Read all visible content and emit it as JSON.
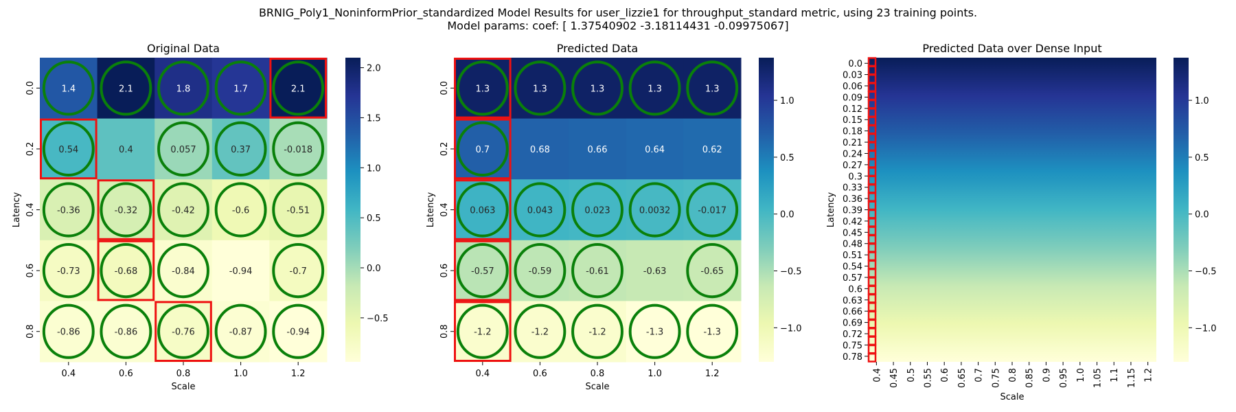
{
  "chart_data": {
    "title_line1": "BRNIG_Poly1_NoninformPrior_standardized Model Results for user_lizzie1 for throughput_standard metric, using 23 training points.",
    "title_line2": "Model params: coef: [ 1.37540902 -3.18114431 -0.09975067]",
    "type": "heatmap",
    "colormap": "YlGnBu",
    "panels": [
      {
        "title": "Original Data",
        "type": "heatmap",
        "xlabel": "Scale",
        "ylabel": "Latency",
        "x": [
          "0.4",
          "0.6",
          "0.8",
          "1.0",
          "1.2"
        ],
        "y": [
          "0.0",
          "0.2",
          "0.4",
          "0.6",
          "0.8"
        ],
        "values": [
          [
            1.4,
            2.1,
            1.8,
            1.7,
            2.1
          ],
          [
            0.54,
            0.4,
            0.057,
            0.37,
            -0.018
          ],
          [
            -0.36,
            -0.32,
            -0.42,
            -0.6,
            -0.51
          ],
          [
            -0.73,
            -0.68,
            -0.84,
            -0.94,
            -0.7
          ],
          [
            -0.86,
            -0.86,
            -0.76,
            -0.87,
            -0.94
          ]
        ],
        "labels": [
          [
            "1.4",
            "2.1",
            "1.8",
            "1.7",
            "2.1"
          ],
          [
            "0.54",
            "0.4",
            "0.057",
            "0.37",
            "-0.018"
          ],
          [
            "-0.36",
            "-0.32",
            "-0.42",
            "-0.6",
            "-0.51"
          ],
          [
            "-0.73",
            "-0.68",
            "-0.84",
            "-0.94",
            "-0.7"
          ],
          [
            "-0.86",
            "-0.86",
            "-0.76",
            "-0.87",
            "-0.94"
          ]
        ],
        "vmin": -0.94,
        "vmax": 2.1,
        "colorbar_ticks": [
          -0.5,
          0.0,
          0.5,
          1.0,
          1.5,
          2.0
        ],
        "colorbar_labels": [
          "−0.5",
          "0.0",
          "0.5",
          "1.0",
          "1.5",
          "2.0"
        ],
        "circles": [
          [
            1,
            1,
            1,
            1,
            1
          ],
          [
            1,
            0,
            1,
            1,
            1
          ],
          [
            1,
            1,
            1,
            1,
            1
          ],
          [
            1,
            1,
            1,
            0,
            1
          ],
          [
            1,
            1,
            1,
            1,
            1
          ]
        ],
        "red_boxes": [
          [
            0,
            4
          ],
          [
            1,
            0
          ],
          [
            2,
            1
          ],
          [
            3,
            1
          ],
          [
            4,
            2
          ]
        ]
      },
      {
        "title": "Predicted Data",
        "type": "heatmap",
        "xlabel": "Scale",
        "ylabel": "Latency",
        "x": [
          "0.4",
          "0.6",
          "0.8",
          "1.0",
          "1.2"
        ],
        "y": [
          "0.0",
          "0.2",
          "0.4",
          "0.6",
          "0.8"
        ],
        "values": [
          [
            1.3,
            1.3,
            1.3,
            1.3,
            1.3
          ],
          [
            0.7,
            0.68,
            0.66,
            0.64,
            0.62
          ],
          [
            0.063,
            0.043,
            0.023,
            0.0032,
            -0.017
          ],
          [
            -0.57,
            -0.59,
            -0.61,
            -0.63,
            -0.65
          ],
          [
            -1.2,
            -1.2,
            -1.2,
            -1.3,
            -1.3
          ]
        ],
        "labels": [
          [
            "1.3",
            "1.3",
            "1.3",
            "1.3",
            "1.3"
          ],
          [
            "0.7",
            "0.68",
            "0.66",
            "0.64",
            "0.62"
          ],
          [
            "0.063",
            "0.043",
            "0.023",
            "0.0032",
            "-0.017"
          ],
          [
            "-0.57",
            "-0.59",
            "-0.61",
            "-0.63",
            "-0.65"
          ],
          [
            "-1.2",
            "-1.2",
            "-1.2",
            "-1.3",
            "-1.3"
          ]
        ],
        "vmin": -1.3,
        "vmax": 1.375,
        "colorbar_ticks": [
          -1.0,
          -0.5,
          0.0,
          0.5,
          1.0
        ],
        "colorbar_labels": [
          "−1.0",
          "−0.5",
          "0.0",
          "0.5",
          "1.0"
        ],
        "circles": [
          [
            1,
            1,
            1,
            1,
            1
          ],
          [
            1,
            0,
            0,
            0,
            0
          ],
          [
            1,
            1,
            1,
            1,
            1
          ],
          [
            1,
            1,
            1,
            0,
            1
          ],
          [
            1,
            1,
            1,
            1,
            1
          ]
        ],
        "red_boxes": [
          [
            0,
            0
          ],
          [
            1,
            0
          ],
          [
            2,
            0
          ],
          [
            3,
            0
          ],
          [
            4,
            0
          ]
        ]
      },
      {
        "title": "Predicted Data over Dense Input",
        "type": "heatmap",
        "xlabel": "Scale",
        "ylabel": "Latency",
        "x": [
          "0.4",
          "0.45",
          "0.5",
          "0.55",
          "0.6",
          "0.65",
          "0.7",
          "0.75",
          "0.8",
          "0.85",
          "0.9",
          "0.95",
          "1.0",
          "1.05",
          "1.1",
          "1.15",
          "1.2"
        ],
        "y": [
          "0.0",
          "0.03",
          "0.06",
          "0.09",
          "0.12",
          "0.15",
          "0.18",
          "0.21",
          "0.24",
          "0.27",
          "0.3",
          "0.33",
          "0.36",
          "0.39",
          "0.42",
          "0.45",
          "0.48",
          "0.51",
          "0.54",
          "0.57",
          "0.6",
          "0.63",
          "0.66",
          "0.69",
          "0.72",
          "0.75",
          "0.78"
        ],
        "value_top": 1.375,
        "value_bottom": -1.3,
        "vmin": -1.3,
        "vmax": 1.375,
        "colorbar_ticks": [
          -1.0,
          -0.5,
          0.0,
          0.5,
          1.0
        ],
        "colorbar_labels": [
          "−1.0",
          "−0.5",
          "0.0",
          "0.5",
          "1.0"
        ],
        "red_column": "0.4"
      }
    ]
  }
}
